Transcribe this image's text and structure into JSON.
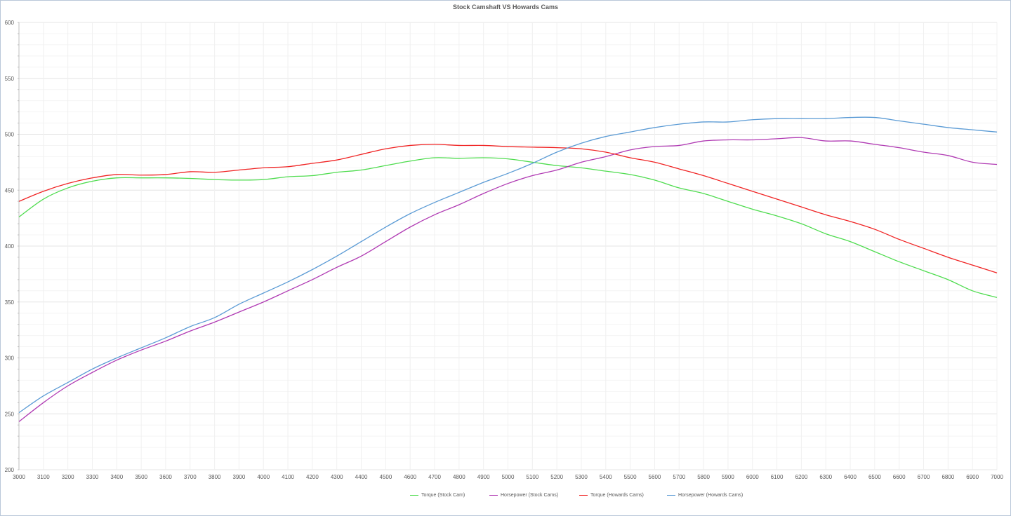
{
  "chart_data": {
    "type": "line",
    "title": "Stock Camshaft VS Howards Cams",
    "xlabel": "",
    "ylabel": "",
    "x": [
      3000,
      3100,
      3200,
      3300,
      3400,
      3500,
      3600,
      3700,
      3800,
      3900,
      4000,
      4100,
      4200,
      4300,
      4400,
      4500,
      4600,
      4700,
      4800,
      4900,
      5000,
      5100,
      5200,
      5300,
      5400,
      5500,
      5600,
      5700,
      5800,
      5900,
      6000,
      6100,
      6200,
      6300,
      6400,
      6500,
      6600,
      6700,
      6800,
      6900,
      7000
    ],
    "xlim": [
      3000,
      7000
    ],
    "ylim": [
      200,
      600
    ],
    "yticks": [
      200,
      250,
      300,
      350,
      400,
      450,
      500,
      550,
      600
    ],
    "grid": true,
    "legend_position": "bottom",
    "series": [
      {
        "name": "Torque (Stock Cam)",
        "color": "#4fdc4f",
        "values": [
          426,
          442,
          452,
          458,
          461,
          461,
          461,
          460.5,
          459.5,
          459,
          459.5,
          462,
          463,
          466,
          468,
          472,
          476,
          479,
          478.5,
          479,
          478,
          475,
          472,
          470,
          467,
          464,
          459,
          452,
          447,
          440,
          433,
          427,
          420,
          411,
          404,
          395,
          386,
          378,
          370,
          360,
          354
        ]
      },
      {
        "name": "Horsepower (Stock Cams)",
        "color": "#b03ab3",
        "values": [
          243,
          260,
          275,
          287,
          298,
          307,
          315,
          324,
          332,
          341,
          350,
          360,
          370,
          381,
          391,
          404,
          417,
          428,
          437,
          447,
          456,
          463,
          468,
          475,
          480,
          486,
          489,
          490,
          494,
          495,
          495,
          496,
          497,
          494,
          494,
          491,
          488,
          484,
          481,
          475,
          473
        ]
      },
      {
        "name": "Torque (Howards Cams)",
        "color": "#f02424",
        "values": [
          440,
          449,
          456,
          461,
          464,
          463.5,
          464,
          466.5,
          466,
          468,
          470,
          471,
          474,
          477,
          482,
          487,
          490,
          491,
          490,
          490,
          489,
          488.5,
          488,
          487,
          484,
          479,
          475,
          469,
          463,
          456,
          449,
          442,
          435,
          428,
          422,
          415,
          406,
          398,
          390,
          383,
          376
        ]
      },
      {
        "name": "Horsepower (Howards Cams)",
        "color": "#5b9bd5",
        "values": [
          251,
          266,
          278,
          290,
          300,
          309,
          318,
          328,
          336,
          348,
          358,
          368,
          379,
          391,
          404,
          417,
          429,
          439,
          448,
          457,
          465,
          474,
          484,
          492,
          498,
          502,
          506,
          509,
          511,
          511,
          513,
          514,
          514,
          514,
          515,
          515,
          512,
          509,
          506,
          504,
          502
        ]
      }
    ]
  }
}
